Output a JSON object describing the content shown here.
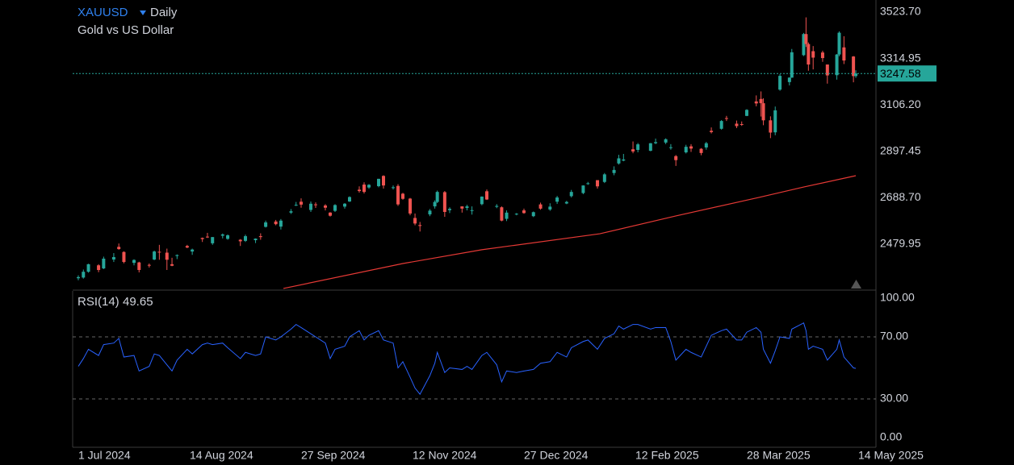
{
  "chart_data": [
    {
      "type": "candlestick",
      "symbol": "XAUUSD",
      "interval": "Daily",
      "title": "Gold vs US Dollar",
      "x": [
        "2024-07-01",
        "2024-07-03",
        "2024-07-05",
        "2024-07-09",
        "2024-07-11",
        "2024-07-15",
        "2024-07-17",
        "2024-07-19",
        "2024-07-23",
        "2024-07-25",
        "2024-07-29",
        "2024-07-31",
        "2024-08-02",
        "2024-08-05",
        "2024-08-07",
        "2024-08-09",
        "2024-08-13",
        "2024-08-15",
        "2024-08-19",
        "2024-08-21",
        "2024-08-23",
        "2024-08-27",
        "2024-08-29",
        "2024-09-03",
        "2024-09-05",
        "2024-09-09",
        "2024-09-11",
        "2024-09-13",
        "2024-09-17",
        "2024-09-19",
        "2024-09-23",
        "2024-09-25",
        "2024-09-27",
        "2024-10-01",
        "2024-10-03",
        "2024-10-07",
        "2024-10-09",
        "2024-10-11",
        "2024-10-15",
        "2024-10-17",
        "2024-10-21",
        "2024-10-23",
        "2024-10-25",
        "2024-10-29",
        "2024-10-31",
        "2024-11-04",
        "2024-11-06",
        "2024-11-08",
        "2024-11-11",
        "2024-11-13",
        "2024-11-15",
        "2024-11-19",
        "2024-11-21",
        "2024-11-22",
        "2024-11-25",
        "2024-11-27",
        "2024-12-02",
        "2024-12-04",
        "2024-12-06",
        "2024-12-10",
        "2024-12-12",
        "2024-12-16",
        "2024-12-18",
        "2024-12-20",
        "2024-12-24",
        "2024-12-27",
        "2024-12-31",
        "2025-01-03",
        "2025-01-07",
        "2025-01-10",
        "2025-01-14",
        "2025-01-16",
        "2025-01-21",
        "2025-01-23",
        "2025-01-27",
        "2025-01-30",
        "2025-02-03",
        "2025-02-05",
        "2025-02-07",
        "2025-02-11",
        "2025-02-13",
        "2025-02-18",
        "2025-02-20",
        "2025-02-24",
        "2025-02-26",
        "2025-02-28",
        "2025-03-04",
        "2025-03-06",
        "2025-03-10",
        "2025-03-12",
        "2025-03-14",
        "2025-03-18",
        "2025-03-20",
        "2025-03-24",
        "2025-03-26",
        "2025-03-28",
        "2025-04-01",
        "2025-04-03",
        "2025-04-04",
        "2025-04-07",
        "2025-04-09",
        "2025-04-11",
        "2025-04-15",
        "2025-04-16",
        "2025-04-21",
        "2025-04-22",
        "2025-04-23",
        "2025-04-25",
        "2025-04-29",
        "2025-05-01",
        "2025-05-05",
        "2025-05-06",
        "2025-05-08",
        "2025-05-12",
        "2025-05-13"
      ],
      "open": [
        2327,
        2330,
        2356,
        2385,
        2371,
        2411,
        2468,
        2445,
        2396,
        2398,
        2387,
        2411,
        2446,
        2442,
        2390,
        2427,
        2472,
        2447,
        2508,
        2514,
        2484,
        2518,
        2504,
        2500,
        2495,
        2498,
        2516,
        2558,
        2582,
        2559,
        2622,
        2657,
        2671,
        2634,
        2659,
        2654,
        2622,
        2630,
        2649,
        2672,
        2725,
        2748,
        2735,
        2741,
        2787,
        2736,
        2742,
        2707,
        2685,
        2598,
        2566,
        2614,
        2650,
        2670,
        2714,
        2633,
        2650,
        2643,
        2632,
        2660,
        2718,
        2648,
        2646,
        2594,
        2614,
        2632,
        2606,
        2659,
        2636,
        2671,
        2663,
        2696,
        2710,
        2754,
        2768,
        2760,
        2800,
        2843,
        2856,
        2907,
        2904,
        2900,
        2934,
        2937,
        2915,
        2876,
        2893,
        2920,
        2909,
        2915,
        2990,
        2999,
        3047,
        3022,
        3020,
        3057,
        3122,
        3133,
        3114,
        3037,
        2983,
        3175,
        3209,
        3229,
        3330,
        3425,
        3380,
        3348,
        3342,
        3288,
        3240,
        3333,
        3365,
        3324,
        3236
      ],
      "high": [
        2340,
        2366,
        2392,
        2390,
        2424,
        2440,
        2483,
        2448,
        2412,
        2401,
        2393,
        2451,
        2477,
        2460,
        2419,
        2434,
        2477,
        2460,
        2510,
        2531,
        2512,
        2528,
        2524,
        2503,
        2523,
        2506,
        2529,
        2586,
        2589,
        2593,
        2638,
        2670,
        2686,
        2672,
        2668,
        2660,
        2624,
        2660,
        2665,
        2695,
        2740,
        2758,
        2750,
        2774,
        2790,
        2744,
        2750,
        2711,
        2688,
        2618,
        2580,
        2638,
        2677,
        2721,
        2719,
        2646,
        2650,
        2657,
        2650,
        2695,
        2726,
        2660,
        2650,
        2632,
        2620,
        2640,
        2627,
        2667,
        2664,
        2697,
        2675,
        2724,
        2745,
        2760,
        2768,
        2800,
        2830,
        2882,
        2886,
        2942,
        2935,
        2935,
        2955,
        2956,
        2930,
        2881,
        2927,
        2930,
        2912,
        2940,
        3005,
        3038,
        3057,
        3036,
        3032,
        3087,
        3149,
        3167,
        3136,
        3055,
        3099,
        3245,
        3230,
        3358,
        3430,
        3500,
        3387,
        3371,
        3350,
        3288,
        3335,
        3437,
        3415,
        3326,
        3262
      ],
      "low": [
        2318,
        2325,
        2352,
        2354,
        2368,
        2400,
        2455,
        2394,
        2385,
        2353,
        2375,
        2408,
        2410,
        2364,
        2381,
        2413,
        2462,
        2432,
        2490,
        2508,
        2477,
        2506,
        2500,
        2472,
        2490,
        2485,
        2500,
        2555,
        2565,
        2546,
        2616,
        2652,
        2644,
        2625,
        2643,
        2632,
        2604,
        2625,
        2640,
        2670,
        2712,
        2708,
        2729,
        2736,
        2730,
        2726,
        2652,
        2680,
        2610,
        2565,
        2537,
        2606,
        2640,
        2665,
        2603,
        2620,
        2622,
        2632,
        2613,
        2655,
        2679,
        2642,
        2583,
        2584,
        2610,
        2617,
        2602,
        2635,
        2630,
        2661,
        2660,
        2690,
        2705,
        2747,
        2730,
        2755,
        2790,
        2838,
        2853,
        2889,
        2893,
        2898,
        2930,
        2930,
        2905,
        2832,
        2888,
        2895,
        2880,
        2905,
        2978,
        2995,
        3034,
        3002,
        3012,
        3056,
        3100,
        3054,
        3015,
        2957,
        2970,
        3170,
        3194,
        3228,
        3326,
        3367,
        3260,
        3266,
        3300,
        3202,
        3220,
        3325,
        3290,
        3208,
        3228
      ],
      "close": [
        2332,
        2356,
        2390,
        2364,
        2415,
        2422,
        2458,
        2400,
        2409,
        2364,
        2384,
        2447,
        2443,
        2410,
        2383,
        2431,
        2465,
        2456,
        2503,
        2512,
        2512,
        2524,
        2520,
        2493,
        2516,
        2505,
        2512,
        2578,
        2570,
        2586,
        2628,
        2657,
        2658,
        2662,
        2656,
        2644,
        2608,
        2656,
        2662,
        2692,
        2719,
        2715,
        2747,
        2774,
        2744,
        2736,
        2659,
        2684,
        2618,
        2573,
        2562,
        2631,
        2670,
        2715,
        2625,
        2639,
        2640,
        2650,
        2633,
        2694,
        2681,
        2652,
        2586,
        2622,
        2617,
        2620,
        2624,
        2640,
        2649,
        2690,
        2670,
        2715,
        2744,
        2754,
        2740,
        2794,
        2814,
        2866,
        2861,
        2897,
        2929,
        2934,
        2939,
        2952,
        2916,
        2858,
        2918,
        2910,
        2890,
        2934,
        2984,
        3034,
        3044,
        3011,
        3019,
        3084,
        3113,
        3114,
        3037,
        2982,
        3082,
        3237,
        3229,
        3343,
        3425,
        3380,
        3288,
        3319,
        3317,
        3239,
        3333,
        3431,
        3306,
        3236,
        3247.58
      ],
      "up_color": "#26a69a",
      "down_color": "#ef5350",
      "overlays": [
        {
          "type": "line",
          "color": "#e53935",
          "x": [
            "2024-09-20",
            "2024-11-08",
            "2024-12-10",
            "2025-01-28",
            "2025-02-28",
            "2025-04-02",
            "2025-04-21",
            "2025-05-13"
          ],
          "values": [
            2281,
            2393,
            2455,
            2527,
            2607,
            2690,
            2737,
            2788
          ]
        }
      ],
      "last_price": 3247.58,
      "last_price_color": "#26a69a",
      "ylim": [
        2280.7,
        3578.1
      ],
      "yticks": [
        {
          "value": 3523.7,
          "label": "3523.70"
        },
        {
          "value": 3314.95,
          "label": "3314.95"
        },
        {
          "value": 3106.2,
          "label": "3106.20"
        },
        {
          "value": 2897.45,
          "label": "2897.45"
        },
        {
          "value": 2688.7,
          "label": "2688.70"
        },
        {
          "value": 2479.95,
          "label": "2479.95"
        }
      ],
      "xlim": [
        "2024-06-28",
        "2025-05-21"
      ],
      "xticks": [
        {
          "value": "2024-07-01",
          "label": "1 Jul 2024"
        },
        {
          "value": "2024-08-14",
          "label": "14 Aug 2024"
        },
        {
          "value": "2024-09-27",
          "label": "27 Sep 2024"
        },
        {
          "value": "2024-11-12",
          "label": "12 Nov 2024"
        },
        {
          "value": "2024-12-27",
          "label": "27 Dec 2024"
        },
        {
          "value": "2025-02-12",
          "label": "12 Feb 2025"
        },
        {
          "value": "2025-03-28",
          "label": "28 Mar 2025"
        },
        {
          "value": "2025-05-14",
          "label": "14 May 2025"
        }
      ]
    },
    {
      "type": "line",
      "title": "RSI(14)",
      "last_value": 49.65,
      "color": "#2962ff",
      "values": [
        51,
        56,
        62,
        58,
        65,
        66,
        69,
        57,
        58,
        48,
        51,
        59,
        58,
        52,
        48,
        55,
        62,
        59,
        65,
        66,
        65,
        66,
        63,
        56,
        60,
        58,
        59,
        70,
        68,
        70,
        75,
        78,
        76,
        72,
        70,
        66,
        56,
        62,
        64,
        70,
        74,
        68,
        71,
        74,
        68,
        66,
        50,
        54,
        44,
        37,
        33,
        45,
        53,
        60,
        47,
        50,
        49,
        51,
        49,
        58,
        60,
        52,
        41,
        48,
        47,
        48,
        49,
        53,
        54,
        60,
        57,
        63,
        67,
        68,
        62,
        69,
        72,
        77,
        75,
        78,
        78,
        75,
        76,
        76,
        67,
        55,
        62,
        60,
        57,
        64,
        71,
        74,
        75,
        68,
        68,
        73,
        76,
        73,
        62,
        53,
        61,
        70,
        69,
        75,
        79,
        74,
        62,
        64,
        62,
        55,
        62,
        68,
        57,
        50,
        49.65
      ],
      "levels": [
        70,
        30
      ],
      "ylim": [
        0,
        100
      ],
      "yticks": [
        {
          "value": 100,
          "label": "100.00"
        },
        {
          "value": 70,
          "label": "70.00"
        },
        {
          "value": 30,
          "label": "30.00"
        },
        {
          "value": 0,
          "label": "0.00"
        }
      ]
    }
  ]
}
